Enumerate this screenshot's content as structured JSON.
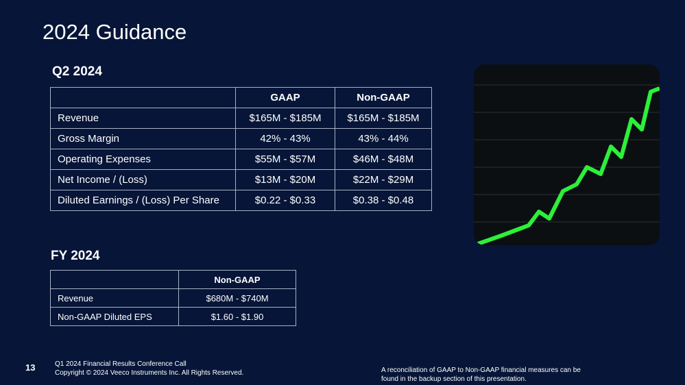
{
  "title": "2024 Guidance",
  "q2": {
    "heading": "Q2 2024",
    "header": [
      "GAAP",
      "Non-GAAP"
    ],
    "rows": [
      [
        "Revenue",
        "$165M - $185M",
        "$165M - $185M"
      ],
      [
        "Gross Margin",
        "42% - 43%",
        "43% - 44%"
      ],
      [
        "Operating Expenses",
        "$55M - $57M",
        "$46M - $48M"
      ],
      [
        "Net Income / (Loss)",
        "$13M - $20M",
        "$22M - $29M"
      ],
      [
        "Diluted Earnings / (Loss) Per Share",
        "$0.22 - $0.33",
        "$0.38 - $0.48"
      ]
    ]
  },
  "fy": {
    "heading": "FY 2024",
    "header": [
      "Non-GAAP"
    ],
    "rows": [
      [
        "Revenue",
        "$680M - $740M"
      ],
      [
        "Non-GAAP Diluted EPS",
        "$1.60 - $1.90"
      ]
    ]
  },
  "footer": {
    "page": "13",
    "lines": [
      "Q1 2024 Financial Results Conference Call",
      "Copyright © 2024 Veeco Instruments Inc. All Rights Reserved."
    ],
    "note": [
      "A reconciliation of GAAP to Non-GAAP financial measures can be",
      "found in the backup section of this presentation."
    ]
  }
}
